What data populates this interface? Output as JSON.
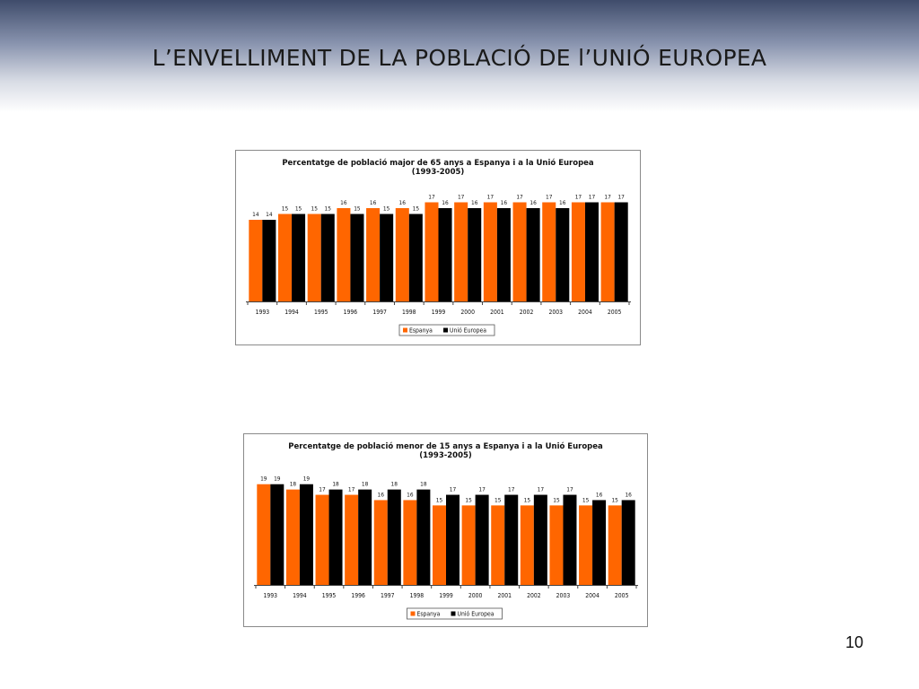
{
  "slide": {
    "title": "L’ENVELLIMENT DE LA POBLACIÓ DE l’UNIÓ EUROPEA",
    "page_number": "10"
  },
  "colors": {
    "espanya": "#ff6600",
    "unio_europea": "#000000"
  },
  "chart_data": [
    {
      "type": "bar",
      "title": "Percentatge de població major de 65 anys a Espanya i a la Unió Europea",
      "subtitle": "(1993-2005)",
      "categories": [
        "1993",
        "1994",
        "1995",
        "1996",
        "1997",
        "1998",
        "1999",
        "2000",
        "2001",
        "2002",
        "2003",
        "2004",
        "2005"
      ],
      "series": [
        {
          "name": "Espanya",
          "color": "#ff6600",
          "values": [
            14,
            15,
            15,
            16,
            16,
            16,
            17,
            17,
            17,
            17,
            17,
            17,
            17
          ]
        },
        {
          "name": "Unió Europea",
          "color": "#000000",
          "values": [
            14,
            15,
            15,
            15,
            15,
            15,
            16,
            16,
            16,
            16,
            16,
            17,
            17
          ]
        }
      ],
      "ylim": [
        0,
        20
      ],
      "grid": false,
      "legend": "bottom-center"
    },
    {
      "type": "bar",
      "title": "Percentatge de població menor de 15 anys a Espanya i a la Unió Europea",
      "subtitle": "(1993-2005)",
      "categories": [
        "1993",
        "1994",
        "1995",
        "1996",
        "1997",
        "1998",
        "1999",
        "2000",
        "2001",
        "2002",
        "2003",
        "2004",
        "2005"
      ],
      "series": [
        {
          "name": "Espanya",
          "color": "#ff6600",
          "values": [
            19,
            18,
            17,
            17,
            16,
            16,
            15,
            15,
            15,
            15,
            15,
            15,
            15
          ]
        },
        {
          "name": "Unió Europea",
          "color": "#000000",
          "values": [
            19,
            19,
            18,
            18,
            18,
            18,
            17,
            17,
            17,
            17,
            17,
            16,
            16
          ]
        }
      ],
      "ylim": [
        0,
        22
      ],
      "grid": false,
      "legend": "bottom-center"
    }
  ]
}
